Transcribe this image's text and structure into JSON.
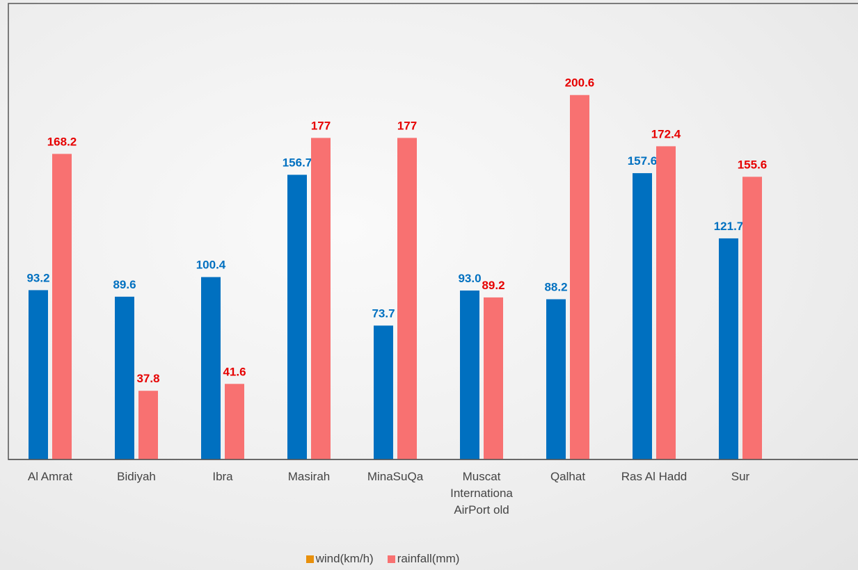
{
  "chart_data": {
    "type": "bar",
    "categories": [
      "Al Amrat",
      "Bidiyah",
      "Ibra",
      "Masirah",
      "MinaSuQa",
      "Muscat Internationa AirPort old",
      "Qalhat",
      "Ras Al Hadd",
      "Sur"
    ],
    "series": [
      {
        "name": "wind(km/h)",
        "color": "#0070c0",
        "legend_color": "#e8900c",
        "label_color": "#0070c0",
        "values": [
          93.2,
          89.6,
          100.4,
          156.7,
          73.7,
          93.0,
          88.2,
          157.6,
          121.7
        ],
        "value_labels": [
          "93.2",
          "89.6",
          "100.4",
          "156.7",
          "73.7",
          "93.0",
          "88.2",
          "157.6",
          "121.7"
        ]
      },
      {
        "name": "rainfall(mm)",
        "color": "#f87171",
        "legend_color": "#f87171",
        "label_color": "#e60000",
        "values": [
          168.2,
          37.8,
          41.6,
          177,
          177,
          89.2,
          200.6,
          172.4,
          155.6
        ]
      }
    ],
    "ylim": [
      0,
      251
    ]
  }
}
